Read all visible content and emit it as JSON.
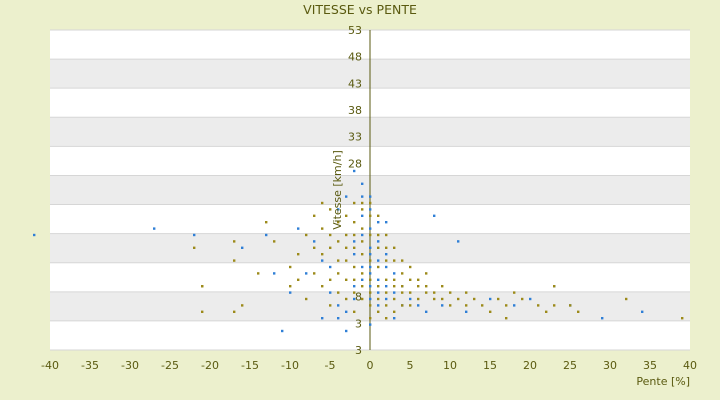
{
  "chart_data": {
    "type": "scatter",
    "title": "VITESSE vs PENTE",
    "xlabel": "Pente [%]",
    "ylabel": "Vitesse [km/h]",
    "xlim": [
      -40,
      40
    ],
    "ylim": [
      3,
      53
    ],
    "x_ticks": [
      -40,
      -35,
      -30,
      -25,
      -20,
      -15,
      -10,
      -5,
      0,
      5,
      10,
      15,
      20,
      25,
      30,
      35,
      40
    ],
    "y_tick_labels": [
      "3",
      "3",
      "8",
      "",
      "",
      "",
      "",
      "28",
      "33",
      "38",
      "43",
      "48",
      "53"
    ],
    "grid": true,
    "series": [
      {
        "color": "#2f7fd6",
        "points": [
          [
            -42,
            21
          ],
          [
            -27,
            22
          ],
          [
            -22,
            21
          ],
          [
            -16,
            19
          ],
          [
            -13,
            21
          ],
          [
            -12,
            15
          ],
          [
            -11,
            6
          ],
          [
            -9,
            22
          ],
          [
            -7,
            20
          ],
          [
            -6,
            17
          ],
          [
            -5,
            16
          ],
          [
            -5,
            12
          ],
          [
            -4,
            10
          ],
          [
            -4,
            8
          ],
          [
            -3,
            6
          ],
          [
            -3,
            9
          ],
          [
            -2,
            13
          ],
          [
            -2,
            11
          ],
          [
            -2,
            18
          ],
          [
            -2,
            20
          ],
          [
            -1,
            14
          ],
          [
            -1,
            21
          ],
          [
            -1,
            24
          ],
          [
            -1,
            27
          ],
          [
            -1,
            29
          ],
          [
            0,
            22
          ],
          [
            0,
            19
          ],
          [
            0,
            18
          ],
          [
            0,
            16
          ],
          [
            0,
            15
          ],
          [
            0,
            13
          ],
          [
            0,
            11
          ],
          [
            0,
            25
          ],
          [
            0,
            27
          ],
          [
            1,
            20
          ],
          [
            1,
            17
          ],
          [
            1,
            14
          ],
          [
            1,
            12
          ],
          [
            1,
            10
          ],
          [
            1,
            23
          ],
          [
            2,
            18
          ],
          [
            2,
            16
          ],
          [
            2,
            13
          ],
          [
            2,
            11
          ],
          [
            3,
            15
          ],
          [
            3,
            12
          ],
          [
            4,
            10
          ],
          [
            5,
            11
          ],
          [
            6,
            10
          ],
          [
            7,
            9
          ],
          [
            8,
            24
          ],
          [
            9,
            10
          ],
          [
            11,
            20
          ],
          [
            12,
            9
          ],
          [
            15,
            11
          ],
          [
            18,
            10
          ],
          [
            20,
            11
          ],
          [
            23,
            13
          ],
          [
            25,
            10
          ],
          [
            29,
            8
          ],
          [
            34,
            9
          ],
          [
            -6,
            8
          ],
          [
            -3,
            27
          ],
          [
            -2,
            31
          ],
          [
            -4,
            25
          ],
          [
            2,
            23
          ],
          [
            -1,
            16
          ],
          [
            0,
            7
          ],
          [
            3,
            8
          ],
          [
            4,
            13
          ],
          [
            -8,
            15
          ],
          [
            -10,
            12
          ]
        ]
      },
      {
        "color": "#9c8a1a",
        "points": [
          [
            -22,
            19
          ],
          [
            -21,
            13
          ],
          [
            -21,
            9
          ],
          [
            -17,
            20
          ],
          [
            -17,
            17
          ],
          [
            -16,
            10
          ],
          [
            -14,
            15
          ],
          [
            -13,
            23
          ],
          [
            -12,
            20
          ],
          [
            -10,
            16
          ],
          [
            -10,
            13
          ],
          [
            -9,
            18
          ],
          [
            -9,
            14
          ],
          [
            -8,
            21
          ],
          [
            -8,
            11
          ],
          [
            -7,
            24
          ],
          [
            -7,
            19
          ],
          [
            -7,
            15
          ],
          [
            -6,
            26
          ],
          [
            -6,
            22
          ],
          [
            -6,
            18
          ],
          [
            -6,
            13
          ],
          [
            -5,
            25
          ],
          [
            -5,
            21
          ],
          [
            -5,
            19
          ],
          [
            -5,
            14
          ],
          [
            -5,
            10
          ],
          [
            -4,
            23
          ],
          [
            -4,
            20
          ],
          [
            -4,
            17
          ],
          [
            -4,
            15
          ],
          [
            -4,
            12
          ],
          [
            -3,
            24
          ],
          [
            -3,
            21
          ],
          [
            -3,
            19
          ],
          [
            -3,
            17
          ],
          [
            -3,
            14
          ],
          [
            -3,
            11
          ],
          [
            -2,
            26
          ],
          [
            -2,
            23
          ],
          [
            -2,
            21
          ],
          [
            -2,
            19
          ],
          [
            -2,
            16
          ],
          [
            -2,
            14
          ],
          [
            -2,
            12
          ],
          [
            -2,
            9
          ],
          [
            -1,
            25
          ],
          [
            -1,
            22
          ],
          [
            -1,
            20
          ],
          [
            -1,
            18
          ],
          [
            -1,
            15
          ],
          [
            -1,
            13
          ],
          [
            -1,
            11
          ],
          [
            0,
            26
          ],
          [
            0,
            24
          ],
          [
            0,
            21
          ],
          [
            0,
            17
          ],
          [
            0,
            14
          ],
          [
            0,
            12
          ],
          [
            0,
            10
          ],
          [
            0,
            8
          ],
          [
            1,
            24
          ],
          [
            1,
            21
          ],
          [
            1,
            19
          ],
          [
            1,
            16
          ],
          [
            1,
            13
          ],
          [
            1,
            11
          ],
          [
            1,
            9
          ],
          [
            2,
            21
          ],
          [
            2,
            19
          ],
          [
            2,
            17
          ],
          [
            2,
            14
          ],
          [
            2,
            12
          ],
          [
            2,
            10
          ],
          [
            2,
            8
          ],
          [
            3,
            19
          ],
          [
            3,
            17
          ],
          [
            3,
            14
          ],
          [
            3,
            13
          ],
          [
            3,
            11
          ],
          [
            3,
            9
          ],
          [
            4,
            17
          ],
          [
            4,
            15
          ],
          [
            4,
            13
          ],
          [
            4,
            12
          ],
          [
            4,
            10
          ],
          [
            5,
            16
          ],
          [
            5,
            14
          ],
          [
            5,
            12
          ],
          [
            5,
            10
          ],
          [
            6,
            14
          ],
          [
            6,
            13
          ],
          [
            6,
            11
          ],
          [
            7,
            15
          ],
          [
            7,
            13
          ],
          [
            7,
            12
          ],
          [
            8,
            12
          ],
          [
            8,
            11
          ],
          [
            9,
            13
          ],
          [
            9,
            11
          ],
          [
            10,
            12
          ],
          [
            10,
            10
          ],
          [
            11,
            11
          ],
          [
            12,
            12
          ],
          [
            12,
            10
          ],
          [
            13,
            11
          ],
          [
            14,
            10
          ],
          [
            15,
            9
          ],
          [
            16,
            11
          ],
          [
            17,
            10
          ],
          [
            17,
            8
          ],
          [
            18,
            12
          ],
          [
            19,
            11
          ],
          [
            21,
            10
          ],
          [
            22,
            9
          ],
          [
            23,
            13
          ],
          [
            23,
            10
          ],
          [
            25,
            10
          ],
          [
            26,
            9
          ],
          [
            32,
            11
          ],
          [
            39,
            8
          ],
          [
            -21,
            13
          ],
          [
            -17,
            9
          ],
          [
            -1,
            26
          ]
        ]
      }
    ]
  }
}
